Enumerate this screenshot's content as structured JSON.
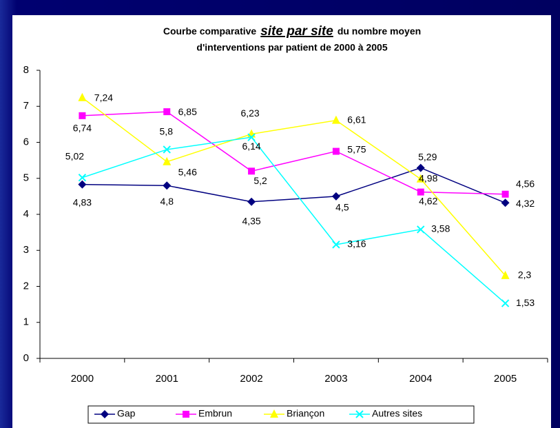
{
  "chart_data": {
    "type": "line",
    "title": {
      "prefix": "Courbe comparative",
      "emphasis": "site par site",
      "suffix": "du nombre moyen",
      "line2": "d'interventions par patient de 2000 à 2005"
    },
    "categories": [
      "2000",
      "2001",
      "2002",
      "2003",
      "2004",
      "2005"
    ],
    "ylim": [
      0,
      8
    ],
    "yticks": [
      0,
      1,
      2,
      3,
      4,
      5,
      6,
      7,
      8
    ],
    "grid": false,
    "legend": "bottom",
    "series": [
      {
        "name": "Gap",
        "color": "#000080",
        "marker": "diamond",
        "values": [
          4.83,
          4.8,
          4.35,
          4.5,
          5.29,
          4.32
        ],
        "value_labels": [
          "4,83",
          "4,8",
          "4,35",
          "4,5",
          "5,29",
          "4,32"
        ]
      },
      {
        "name": "Embrun",
        "color": "#ff00ff",
        "marker": "square",
        "values": [
          6.74,
          6.85,
          5.2,
          5.75,
          4.62,
          4.56
        ],
        "value_labels": [
          "6,74",
          "6,85",
          "5,2",
          "5,75",
          "4,62",
          "4,56"
        ]
      },
      {
        "name": "Briançon",
        "color": "#ffff00",
        "marker": "triangle",
        "values": [
          7.24,
          5.46,
          6.23,
          6.61,
          4.98,
          2.3
        ],
        "value_labels": [
          "7,24",
          "5,46",
          "6,23",
          "6,61",
          "4,98",
          "2,3"
        ]
      },
      {
        "name": "Autres sites",
        "color": "#00ffff",
        "marker": "x",
        "values": [
          5.02,
          5.8,
          6.14,
          3.16,
          3.58,
          1.53
        ],
        "value_labels": [
          "5,02",
          "5,8",
          "6,14",
          "3,16",
          "3,58",
          "1,53"
        ]
      }
    ]
  }
}
